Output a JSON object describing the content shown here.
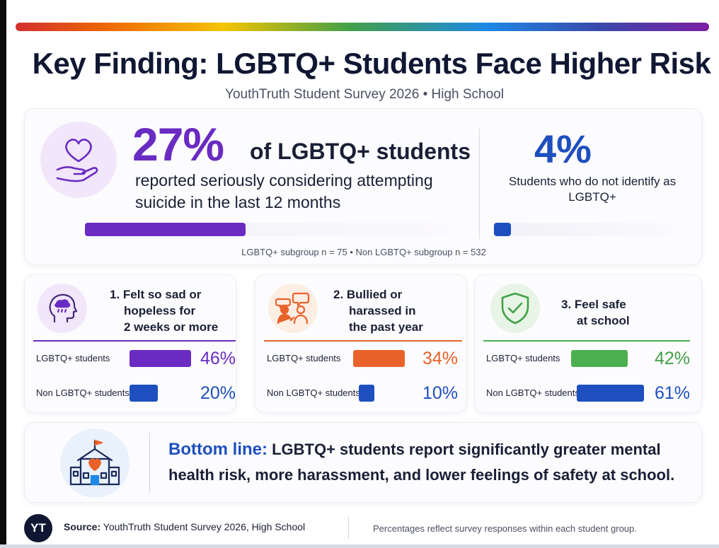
{
  "header": {
    "title": "Key Finding: LGBTQ+ Students Face Higher Risk",
    "subtitle": "YouthTruth Student Survey 2026  •  High School"
  },
  "hero": {
    "pct": "27%",
    "of_label": "of LGBTQ+ students",
    "description": "reported seriously considering attempting suicide in the last 12 months",
    "compare_pct": "4%",
    "compare_label": "Students who do not identify as LGBTQ+",
    "sample_note": "LGBTQ+ subgroup n = 75  •  Non LGBTQ+ subgroup n = 532"
  },
  "panels": [
    {
      "title_line1": "1. Felt so sad or",
      "title_line2": "hopeless for",
      "title_line3": "2 weeks or more",
      "row1_label": "LGBTQ+ students",
      "row1_value": "46%",
      "row2_label": "Non LGBTQ+ students",
      "row2_value": "20%"
    },
    {
      "title_line1": "2. Bullied or",
      "title_line2": "harassed in",
      "title_line3": "the past year",
      "row1_label": "LGBTQ+ students",
      "row1_value": "34%",
      "row2_label": "Non LGBTQ+ students",
      "row2_value": "10%"
    },
    {
      "title_line1": "3. Feel safe",
      "title_line2": "at school",
      "row1_label": "LGBTQ+ students",
      "row1_value": "42%",
      "row2_label": "Non LGBTQ+ students",
      "row2_value": "61%"
    }
  ],
  "bottom_line": {
    "lead": "Bottom line:",
    "text": "LGBTQ+ students report significantly greater mental health risk, more harassment, and lower feelings of safety at school."
  },
  "footer": {
    "logo": "YT",
    "source_label": "Source:",
    "source_text": "YouthTruth Student Survey 2026, High School",
    "note": "Percentages reflect survey responses within each student group."
  },
  "colors": {
    "purple": "#6a2bc2",
    "blue": "#1e4fbf",
    "orange": "#e8622a",
    "green": "#4caf50",
    "navy": "#0f1733"
  },
  "icons": {
    "hero": "heart-in-hand-icon",
    "panel1": "head-rain-cloud-icon",
    "panel2": "people-speech-icon",
    "panel3": "shield-check-icon",
    "bottom": "school-heart-icon"
  },
  "chart_data": [
    {
      "type": "bar",
      "title": "Seriously considered attempting suicide in the last 12 months",
      "categories": [
        "LGBTQ+ students",
        "Students who do not identify as LGBTQ+"
      ],
      "values": [
        27,
        4
      ],
      "unit": "%",
      "ylim": [
        0,
        100
      ]
    },
    {
      "type": "bar",
      "title": "Felt so sad or hopeless for 2 weeks or more",
      "categories": [
        "LGBTQ+ students",
        "Non LGBTQ+ students"
      ],
      "values": [
        46,
        20
      ],
      "unit": "%",
      "ylim": [
        0,
        100
      ]
    },
    {
      "type": "bar",
      "title": "Bullied or harassed in the past year",
      "categories": [
        "LGBTQ+ students",
        "Non LGBTQ+ students"
      ],
      "values": [
        34,
        10
      ],
      "unit": "%",
      "ylim": [
        0,
        100
      ]
    },
    {
      "type": "bar",
      "title": "Feel safe at school",
      "categories": [
        "LGBTQ+ students",
        "Non LGBTQ+ students"
      ],
      "values": [
        42,
        61
      ],
      "unit": "%",
      "ylim": [
        0,
        100
      ]
    }
  ]
}
